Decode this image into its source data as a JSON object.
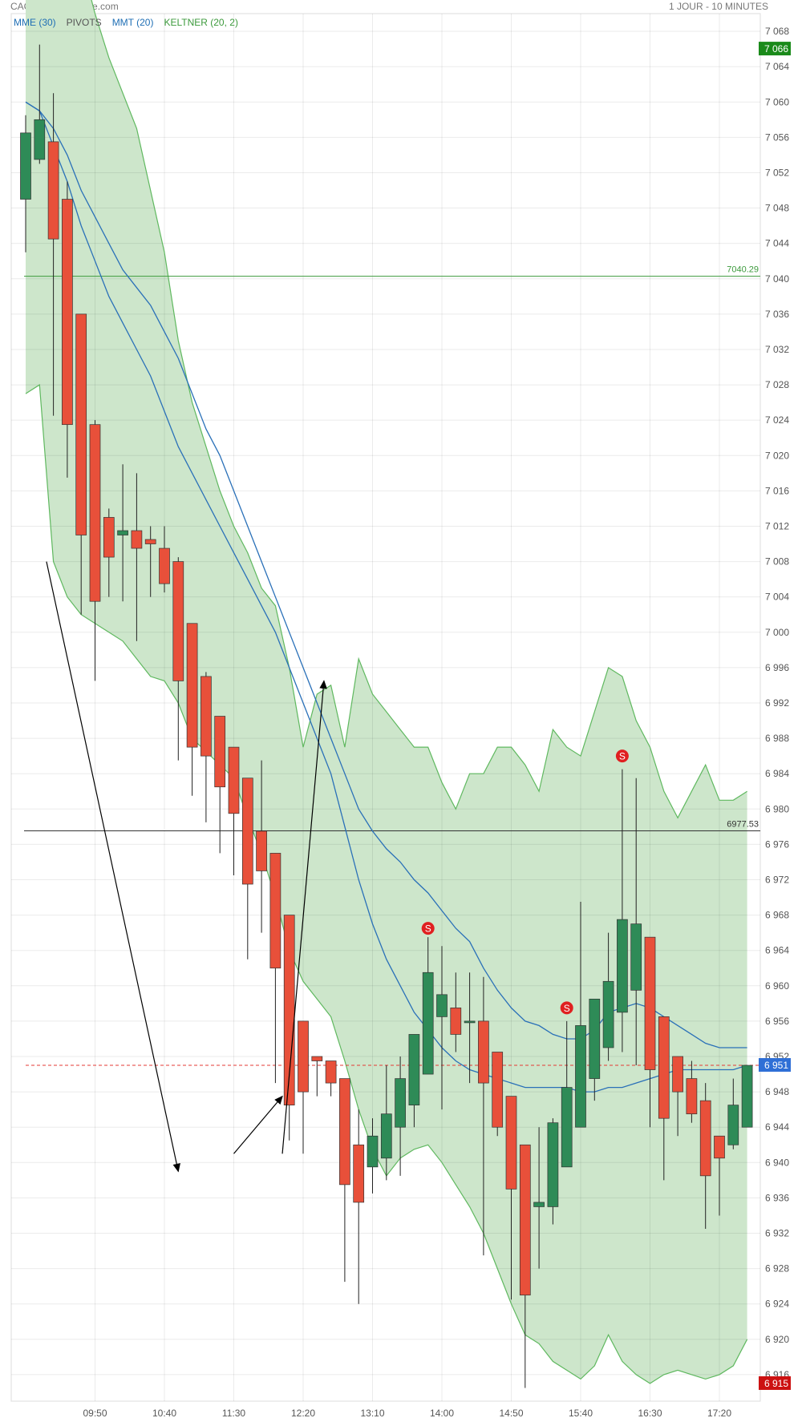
{
  "header": {
    "title": "CAC 40 - abcbourse.com",
    "period": "1 JOUR - 10 MINUTES"
  },
  "legend": [
    {
      "label": "MME (30)",
      "color": "#1f6fb5"
    },
    {
      "label": "PIVOTS",
      "color": "#555555"
    },
    {
      "label": "MMT (20)",
      "color": "#1f6fb5"
    },
    {
      "label": "KELTNER (20, 2)",
      "color": "#3c9a3c"
    }
  ],
  "chart_data": {
    "type": "candlestick",
    "ylim": [
      6913,
      7070
    ],
    "y_ticks": [
      7068,
      7064,
      7060,
      7056,
      7052,
      7048,
      7044,
      7040,
      7036,
      7032,
      7028,
      7024,
      7020,
      7016,
      7012,
      7008,
      7004,
      7000,
      6996,
      6992,
      6988,
      6984,
      6980,
      6976,
      6972,
      6968,
      6964,
      6960,
      6956,
      6952,
      6948,
      6944,
      6940,
      6936,
      6932,
      6928,
      6924,
      6920,
      6916
    ],
    "x_tick_labels": [
      "09:50",
      "10:40",
      "11:30",
      "12:20",
      "13:10",
      "14:00",
      "14:50",
      "15:40",
      "16:30",
      "17:20"
    ],
    "candles": [
      {
        "o": 7049.0,
        "h": 7058.5,
        "l": 7043.0,
        "c": 7056.5
      },
      {
        "o": 7053.5,
        "h": 7066.5,
        "l": 7053.0,
        "c": 7058.0
      },
      {
        "o": 7055.5,
        "h": 7061.0,
        "l": 7024.5,
        "c": 7044.5
      },
      {
        "o": 7049.0,
        "h": 7051.0,
        "l": 7017.5,
        "c": 7023.5
      },
      {
        "o": 7036.0,
        "h": 7036.0,
        "l": 7002.0,
        "c": 7011.0
      },
      {
        "o": 7023.5,
        "h": 7024.0,
        "l": 6994.5,
        "c": 7003.5
      },
      {
        "o": 7013.0,
        "h": 7014.0,
        "l": 7004.0,
        "c": 7008.5
      },
      {
        "o": 7011.0,
        "h": 7019.0,
        "l": 7003.5,
        "c": 7011.5
      },
      {
        "o": 7011.5,
        "h": 7018.0,
        "l": 6999.0,
        "c": 7009.5
      },
      {
        "o": 7010.5,
        "h": 7012.0,
        "l": 7004.0,
        "c": 7010.0
      },
      {
        "o": 7009.5,
        "h": 7012.0,
        "l": 7004.5,
        "c": 7005.5
      },
      {
        "o": 7008.0,
        "h": 7008.5,
        "l": 6985.5,
        "c": 6994.5
      },
      {
        "o": 7001.0,
        "h": 7001.0,
        "l": 6981.5,
        "c": 6987.0
      },
      {
        "o": 6995.0,
        "h": 6995.5,
        "l": 6978.5,
        "c": 6986.0
      },
      {
        "o": 6990.5,
        "h": 6990.5,
        "l": 6975.0,
        "c": 6982.5
      },
      {
        "o": 6987.0,
        "h": 6987.0,
        "l": 6972.5,
        "c": 6979.5
      },
      {
        "o": 6983.5,
        "h": 6983.5,
        "l": 6963.0,
        "c": 6971.5
      },
      {
        "o": 6977.5,
        "h": 6985.5,
        "l": 6966.0,
        "c": 6973.0
      },
      {
        "o": 6975.0,
        "h": 6975.0,
        "l": 6949.0,
        "c": 6962.0
      },
      {
        "o": 6968.0,
        "h": 6968.0,
        "l": 6942.5,
        "c": 6946.5
      },
      {
        "o": 6956.0,
        "h": 6956.0,
        "l": 6941.0,
        "c": 6948.0
      },
      {
        "o": 6952.0,
        "h": 6952.0,
        "l": 6947.5,
        "c": 6951.5
      },
      {
        "o": 6951.5,
        "h": 6951.5,
        "l": 6947.5,
        "c": 6949.0
      },
      {
        "o": 6949.5,
        "h": 6949.5,
        "l": 6926.5,
        "c": 6937.5
      },
      {
        "o": 6942.0,
        "h": 6946.0,
        "l": 6924.0,
        "c": 6935.5
      },
      {
        "o": 6939.5,
        "h": 6945.0,
        "l": 6936.5,
        "c": 6943.0
      },
      {
        "o": 6940.5,
        "h": 6951.0,
        "l": 6938.0,
        "c": 6945.5
      },
      {
        "o": 6944.0,
        "h": 6952.0,
        "l": 6938.5,
        "c": 6949.5
      },
      {
        "o": 6946.5,
        "h": 6954.5,
        "l": 6944.0,
        "c": 6954.5
      },
      {
        "o": 6950.0,
        "h": 6965.5,
        "l": 6950.0,
        "c": 6961.5
      },
      {
        "o": 6956.5,
        "h": 6964.5,
        "l": 6946.0,
        "c": 6959.0
      },
      {
        "o": 6957.5,
        "h": 6961.5,
        "l": 6952.5,
        "c": 6954.5
      },
      {
        "o": 6956.0,
        "h": 6961.5,
        "l": 6949.0,
        "c": 6956.0
      },
      {
        "o": 6956.0,
        "h": 6961.0,
        "l": 6929.5,
        "c": 6949.0
      },
      {
        "o": 6952.5,
        "h": 6952.5,
        "l": 6943.0,
        "c": 6944.0
      },
      {
        "o": 6947.5,
        "h": 6947.5,
        "l": 6924.5,
        "c": 6937.0
      },
      {
        "o": 6942.0,
        "h": 6942.0,
        "l": 6914.5,
        "c": 6925.0
      },
      {
        "o": 6935.0,
        "h": 6944.0,
        "l": 6928.0,
        "c": 6935.5
      },
      {
        "o": 6935.0,
        "h": 6945.0,
        "l": 6933.0,
        "c": 6944.5
      },
      {
        "o": 6939.5,
        "h": 6956.0,
        "l": 6939.5,
        "c": 6948.5
      },
      {
        "o": 6944.0,
        "h": 6969.5,
        "l": 6944.0,
        "c": 6955.5
      },
      {
        "o": 6949.5,
        "h": 6958.0,
        "l": 6947.0,
        "c": 6958.5
      },
      {
        "o": 6953.0,
        "h": 6966.0,
        "l": 6951.5,
        "c": 6960.5
      },
      {
        "o": 6957.0,
        "h": 6984.5,
        "l": 6952.5,
        "c": 6967.5
      },
      {
        "o": 6959.5,
        "h": 6983.5,
        "l": 6951.0,
        "c": 6967.0
      },
      {
        "o": 6965.5,
        "h": 6965.5,
        "l": 6944.0,
        "c": 6950.5
      },
      {
        "o": 6956.5,
        "h": 6956.5,
        "l": 6938.0,
        "c": 6945.0
      },
      {
        "o": 6952.0,
        "h": 6952.0,
        "l": 6943.0,
        "c": 6948.0
      },
      {
        "o": 6949.5,
        "h": 6951.5,
        "l": 6944.5,
        "c": 6945.5
      },
      {
        "o": 6947.0,
        "h": 6949.0,
        "l": 6932.5,
        "c": 6938.5
      },
      {
        "o": 6943.0,
        "h": 6943.0,
        "l": 6934.0,
        "c": 6940.5
      },
      {
        "o": 6942.0,
        "h": 6949.5,
        "l": 6941.5,
        "c": 6946.5
      },
      {
        "o": 6944.0,
        "h": 6951.0,
        "l": 6944.0,
        "c": 6951.0
      }
    ],
    "colors": {
      "up": "#2e8b57",
      "down": "#e8503a",
      "keltner_fill": "#cde6cb",
      "keltner_line": "#5fb85f",
      "ma": "#2a70b8"
    },
    "keltner_upper": [
      7073,
      7093,
      7090,
      7080,
      7076,
      7070,
      7065,
      7061,
      7057,
      7050,
      7043,
      7033,
      7026,
      7021,
      7016,
      7012,
      7009,
      7005,
      7003,
      6996,
      6987,
      6993,
      6994,
      6987,
      6997,
      6993,
      6991,
      6989,
      6987,
      6987,
      6983,
      6980,
      6984,
      6984,
      6987,
      6987,
      6985,
      6982,
      6989,
      6987,
      6986,
      6991,
      6996,
      6995,
      6990,
      6987,
      6982,
      6979,
      6982,
      6985,
      6981,
      6981,
      6982
    ],
    "keltner_lower": [
      7027.0,
      7028.0,
      7008.0,
      7004.0,
      7002.0,
      7001.0,
      7000.0,
      6999.0,
      6997.0,
      6995.0,
      6994.5,
      6992.0,
      6988.0,
      6986.5,
      6985.0,
      6983.5,
      6979.0,
      6975.0,
      6970.0,
      6964.0,
      6960.5,
      6958.5,
      6956.5,
      6951.5,
      6946.0,
      6941.5,
      6938.5,
      6940.5,
      6941.5,
      6942.0,
      6940.0,
      6937.5,
      6935.0,
      6932.0,
      6928.0,
      6924.0,
      6920.5,
      6919.5,
      6917.5,
      6916.5,
      6915.5,
      6917.0,
      6920.5,
      6917.5,
      6916.0,
      6915.0,
      6916.0,
      6916.5,
      6916.0,
      6915.5,
      6916.0,
      6917.0,
      6920.0
    ],
    "ma_fast": [
      7060,
      7059,
      7055,
      7051,
      7046,
      7042,
      7038,
      7035,
      7032,
      7029,
      7025,
      7021,
      7018,
      7015,
      7012,
      7009,
      7006,
      7003,
      7000,
      6996,
      6992,
      6988,
      6984,
      6978,
      6972,
      6967,
      6963,
      6960,
      6957,
      6955,
      6953,
      6951.5,
      6950.5,
      6950,
      6949.5,
      6949,
      6948.5,
      6948.5,
      6948.5,
      6948.5,
      6948,
      6948,
      6948.5,
      6948.5,
      6949,
      6949.5,
      6950,
      6950.5,
      6950.5,
      6950.5,
      6950.5,
      6950.5,
      6951
    ],
    "ma_slow": [
      7060,
      7059,
      7057,
      7054,
      7050,
      7047,
      7044,
      7041,
      7039,
      7037,
      7034,
      7031,
      7027,
      7023,
      7020,
      7016,
      7012,
      7008,
      7004,
      7000,
      6996,
      6992,
      6988,
      6984,
      6980,
      6977.5,
      6975.5,
      6974,
      6972,
      6970.5,
      6968.5,
      6966.5,
      6965,
      6962,
      6959.5,
      6957.5,
      6956,
      6955.5,
      6954.5,
      6954,
      6954,
      6955,
      6957,
      6957.5,
      6958,
      6957.5,
      6956.5,
      6955.5,
      6954.5,
      6953.5,
      6953,
      6953,
      6953
    ],
    "pivot_lines": [
      {
        "value": 7040.29,
        "label": "7040.29",
        "color": "#3c9a3c"
      },
      {
        "value": 6977.53,
        "label": "6977.53",
        "color": "#333333"
      }
    ],
    "last_price": {
      "value": 6951,
      "label": "6 951",
      "color": "#2f6fd6"
    },
    "high_badge": {
      "value": 7066,
      "label": "7 066",
      "color": "#1a8a1a"
    },
    "low_badge": {
      "value": 6915,
      "label": "6 915",
      "color": "#cc1111"
    },
    "signals": [
      {
        "index": 29,
        "value": 6966.5,
        "label": "S"
      },
      {
        "index": 39,
        "value": 6957.5,
        "label": "S"
      },
      {
        "index": 43,
        "value": 6986.0,
        "label": "S"
      }
    ],
    "arrows": [
      {
        "from": [
          1.5,
          7008
        ],
        "to": [
          11,
          6939
        ]
      },
      {
        "from": [
          15,
          6941
        ],
        "to": [
          18.5,
          6947.5
        ]
      },
      {
        "from": [
          18.5,
          6941
        ],
        "to": [
          21.5,
          6994.5
        ]
      }
    ]
  }
}
